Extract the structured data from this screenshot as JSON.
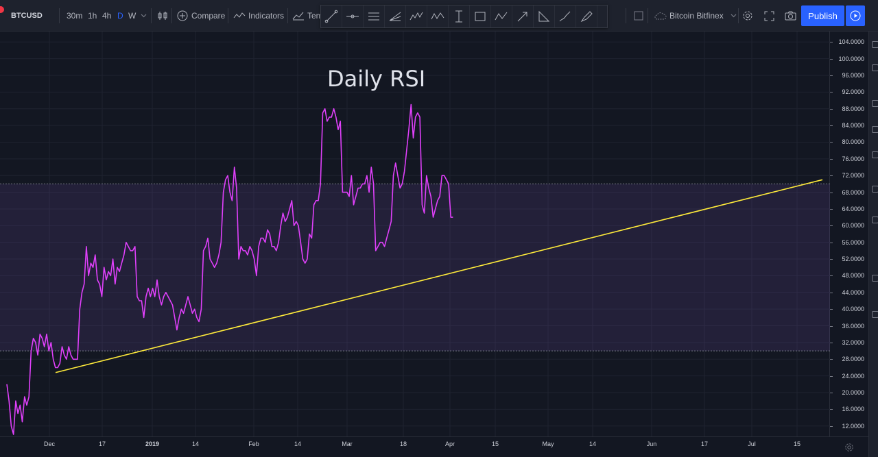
{
  "toolbar": {
    "symbol": "BTCUSD",
    "intervals": [
      {
        "label": "30m",
        "active": false
      },
      {
        "label": "1h",
        "active": false
      },
      {
        "label": "4h",
        "active": false
      },
      {
        "label": "D",
        "active": true
      },
      {
        "label": "W",
        "active": false
      }
    ],
    "compare_label": "Compare",
    "indicators_label": "Indicators",
    "templates_label": "Tem",
    "exchange_label": "Bitcoin Bitfinex",
    "publish_label": "Publish"
  },
  "drawing_tools": [
    {
      "name": "trend-line-icon"
    },
    {
      "name": "horizontal-ray-icon"
    },
    {
      "name": "parallel-channel-icon"
    },
    {
      "name": "pitchfork-icon"
    },
    {
      "name": "elliott-wave-icon"
    },
    {
      "name": "xabcd-pattern-icon"
    },
    {
      "name": "text-cursor-icon"
    },
    {
      "name": "rectangle-icon"
    },
    {
      "name": "abcd-pattern-icon"
    },
    {
      "name": "arrow-icon"
    },
    {
      "name": "triangle-icon"
    },
    {
      "name": "brush-icon"
    },
    {
      "name": "highlighter-icon"
    }
  ],
  "chart_title": "Daily RSI",
  "chart_data": {
    "type": "line",
    "title": "Daily RSI",
    "ylim": [
      9.5,
      106.5
    ],
    "y_ticks": [
      12,
      16,
      20,
      24,
      28,
      32,
      36,
      40,
      44,
      48,
      52,
      56,
      60,
      64,
      68,
      72,
      76,
      80,
      84,
      88,
      92,
      96,
      100,
      104
    ],
    "x_ticks": [
      "Dec",
      "17",
      "2019",
      "14",
      "Feb",
      "14",
      "Mar",
      "18",
      "Apr",
      "15",
      "May",
      "14",
      "Jun",
      "17",
      "Jul",
      "15"
    ],
    "band": {
      "upper": 70,
      "lower": 30,
      "color": "#7e57c2"
    },
    "series": [
      {
        "color": "#e040fb",
        "values": [
          22,
          18,
          12,
          10,
          18,
          15,
          17,
          13,
          19,
          17,
          19,
          30,
          33,
          32,
          29,
          34,
          33,
          31,
          34,
          30,
          32,
          28,
          26,
          26,
          27,
          31,
          29,
          28,
          31,
          29,
          28,
          28,
          28,
          40,
          44,
          46,
          55,
          48,
          51,
          50,
          53,
          47,
          46,
          43,
          50,
          47,
          49,
          48,
          52,
          46,
          50,
          49,
          51,
          53,
          56,
          55,
          54,
          54,
          55,
          43,
          42,
          42,
          38,
          43,
          45,
          43,
          45,
          43,
          47,
          43,
          41,
          43,
          44,
          43,
          42,
          41,
          38,
          35,
          38,
          40,
          39,
          41,
          43,
          41,
          39,
          40,
          38,
          37,
          40,
          54,
          55,
          57,
          52,
          51,
          50,
          51,
          53,
          56,
          68,
          71,
          72,
          68,
          66,
          74,
          69,
          52,
          55,
          54,
          54,
          53,
          55,
          54,
          52,
          48,
          55,
          57,
          57,
          56,
          59,
          58,
          55,
          55,
          54,
          56,
          60,
          63,
          61,
          62,
          64,
          66,
          60,
          61,
          60,
          56,
          52,
          51,
          52,
          58,
          57,
          65,
          66,
          66,
          70,
          87,
          88,
          85,
          86,
          86,
          88,
          86,
          83,
          85,
          68,
          68,
          68,
          67,
          72,
          65,
          67,
          69,
          69,
          70,
          70,
          72,
          68,
          74,
          70,
          54,
          55,
          56,
          56,
          55,
          57,
          59,
          61,
          72,
          75,
          72,
          69,
          70,
          73,
          78,
          83,
          89,
          81,
          86,
          87,
          86,
          65,
          63,
          72,
          69,
          67,
          62,
          64,
          66,
          67,
          72,
          72,
          71,
          70,
          62,
          62
        ]
      }
    ],
    "trendline": {
      "color": "#ffeb3b",
      "from": {
        "x_index": 36,
        "y": 24.8
      },
      "to": {
        "x_index": 555,
        "y": 71
      }
    }
  },
  "colors": {
    "background": "#131722",
    "grid": "#1f2330",
    "rsi_line": "#e040fb",
    "trendline": "#ffeb3b",
    "accent": "#2962ff"
  }
}
